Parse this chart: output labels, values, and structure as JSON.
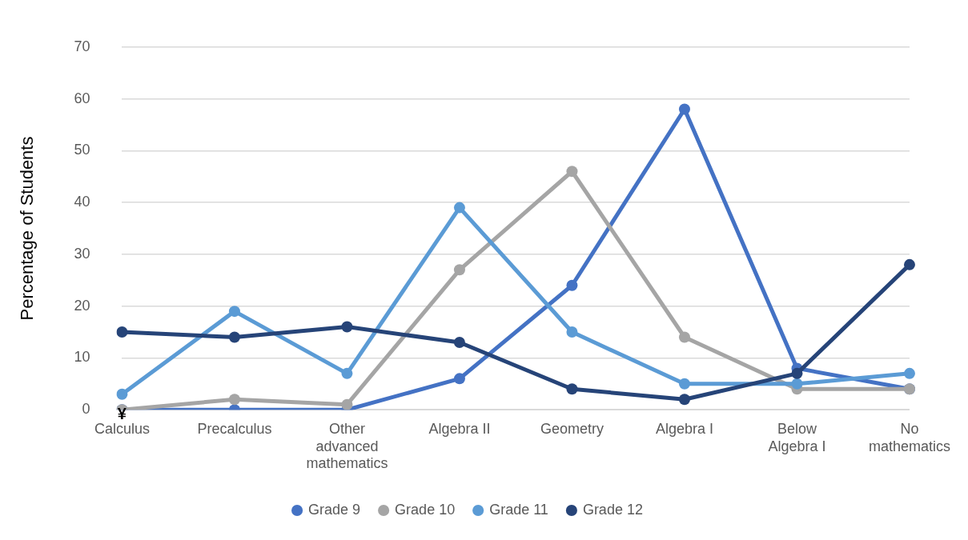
{
  "chart_data": {
    "type": "line",
    "ylabel": "Percentage of Students",
    "categories": [
      "Calculus",
      "Precalculus",
      "Other advanced mathematics",
      "Algebra II",
      "Geometry",
      "Algebra I",
      "Below Algebra I",
      "No mathematics"
    ],
    "series": [
      {
        "name": "Grade 9",
        "color": "#4472c4",
        "values": [
          0,
          0,
          0,
          6,
          24,
          58,
          8,
          4
        ]
      },
      {
        "name": "Grade 10",
        "color": "#a5a5a5",
        "values": [
          0,
          2,
          1,
          27,
          46,
          14,
          4,
          4
        ]
      },
      {
        "name": "Grade 11",
        "color": "#5b9bd5",
        "values": [
          3,
          19,
          7,
          39,
          15,
          5,
          5,
          7
        ]
      },
      {
        "name": "Grade 12",
        "color": "#264478",
        "values": [
          15,
          14,
          16,
          13,
          4,
          2,
          7,
          28
        ]
      }
    ],
    "ylim": [
      0,
      70
    ],
    "yticks": [
      0,
      10,
      20,
      30,
      40,
      50,
      60,
      70
    ],
    "grid": "y",
    "legend": "bottom",
    "marker": "circle",
    "line_style": "solid",
    "annotations": [
      {
        "text": "¥",
        "x": "Calculus",
        "y": 0
      }
    ]
  }
}
